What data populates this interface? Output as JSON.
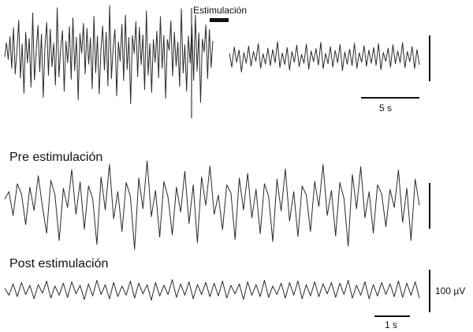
{
  "figure": {
    "stim_label": "Estimulación",
    "pre_title": "Pre estimulación",
    "post_title": "Post estimulación",
    "top_time_scale": "5 s",
    "bottom_time_scale": "1 s",
    "amplitude_scale": "100 µV"
  },
  "chart_data": [
    {
      "type": "line",
      "panel": "overview",
      "title": "",
      "series": [
        {
          "values": [
            0,
            42,
            -8,
            61,
            -35,
            88,
            -52,
            20,
            110,
            -64,
            39,
            -110,
            74,
            -18,
            55,
            -92,
            132,
            -70,
            16,
            95,
            -45,
            68,
            -122,
            27,
            104,
            -56,
            83,
            -30,
            41,
            -85,
            148,
            -60,
            24,
            79,
            -104,
            47,
            -18,
            91,
            -68,
            118,
            -42,
            59,
            -130,
            70,
            11,
            101,
            -52,
            86,
            -22,
            57,
            -96,
            122,
            -48,
            63,
            -112,
            18,
            93,
            -40,
            74,
            -88,
            155,
            -66,
            28,
            82,
            -118,
            45,
            -13,
            98,
            -72,
            126,
            -38,
            58,
            -142,
            64,
            10,
            106,
            -60,
            89,
            -24,
            66,
            -99,
            138,
            -55,
            40,
            -108,
            52,
            -17,
            77,
            -63,
            121,
            -35,
            64,
            -125,
            52,
            20,
            108,
            -58,
            74,
            -28,
            44,
            -90,
            145,
            -49,
            36,
            -104,
            63,
            -18,
            95,
            -71,
            126,
            -43,
            72,
            -138,
            53,
            14,
            96,
            -66,
            82,
            -32,
            48
          ]
        },
        {
          "values": [
            10,
            -18,
            23,
            -8,
            17,
            -28,
            12,
            -10,
            25,
            -16,
            14,
            -6,
            30,
            -20,
            9,
            -12,
            21,
            -15,
            18,
            -9,
            34,
            -19,
            11,
            -13,
            22,
            -24,
            14,
            -8,
            27,
            -17,
            8,
            -10,
            29,
            -22,
            15,
            -7,
            20,
            -14,
            33,
            -21,
            10,
            -11,
            24,
            -18,
            16,
            -9,
            28,
            -25,
            13,
            -12,
            19,
            -15,
            31,
            -20,
            11,
            -8,
            26,
            -16,
            17,
            -10,
            22,
            -14,
            30,
            -23,
            12,
            -6,
            21,
            -18,
            28,
            -11,
            15,
            -9,
            32,
            -19,
            14,
            -7,
            24,
            -21,
            18,
            -13
          ]
        }
      ]
    },
    {
      "type": "line",
      "panel": "pre",
      "title": "Pre estimulación",
      "series": [
        {
          "values": [
            5,
            18,
            -24,
            32,
            14,
            -40,
            26,
            -15,
            46,
            -8,
            -55,
            38,
            12,
            -68,
            24,
            -10,
            57,
            -22,
            35,
            -48,
            28,
            6,
            -75,
            44,
            -14,
            66,
            -30,
            18,
            -52,
            34,
            10,
            -84,
            42,
            -12,
            72,
            -26,
            20,
            -62,
            36,
            8,
            -58,
            26,
            -18,
            54,
            -38,
            30,
            -72,
            44,
            -6,
            63,
            -22,
            12,
            -49,
            30,
            16,
            -66,
            42,
            -14,
            50,
            -28,
            22,
            -56,
            32,
            10,
            -70,
            40,
            -16,
            58,
            -34,
            18,
            -61,
            28,
            12,
            -52,
            36,
            -8,
            66,
            -24,
            20,
            -60,
            34,
            6,
            -78,
            48,
            -12,
            62,
            -28,
            18,
            -55,
            30,
            14,
            -44,
            22,
            -10,
            56,
            -36,
            24,
            -68,
            40,
            -6
          ]
        }
      ]
    },
    {
      "type": "line",
      "panel": "post",
      "title": "Post estimulación",
      "series": [
        {
          "values": [
            4,
            -6,
            10,
            -8,
            12,
            -5,
            8,
            -11,
            9,
            -3,
            14,
            -10,
            7,
            -6,
            11,
            -9,
            13,
            -4,
            8,
            -12,
            10,
            -7,
            15,
            -5,
            9,
            -11,
            12,
            -8,
            7,
            -6,
            14,
            -10,
            11,
            -4,
            9,
            -13,
            12,
            -7,
            8,
            -5,
            16,
            -9,
            10,
            -6,
            13,
            -11,
            9,
            -5,
            12,
            -8,
            11,
            -7,
            14,
            -10,
            8,
            -4,
            10,
            -12,
            13,
            -6,
            9,
            -8,
            15,
            -9,
            7,
            -5,
            11,
            -10,
            12,
            -6,
            14,
            -11,
            9,
            -7,
            13,
            -8,
            10,
            -4,
            12,
            -9,
            11,
            -5,
            15,
            -10,
            8,
            -6,
            13,
            -11,
            9,
            -7,
            12,
            -5,
            10,
            -8,
            14,
            -9,
            11,
            -6,
            13,
            -10
          ]
        }
      ]
    }
  ]
}
